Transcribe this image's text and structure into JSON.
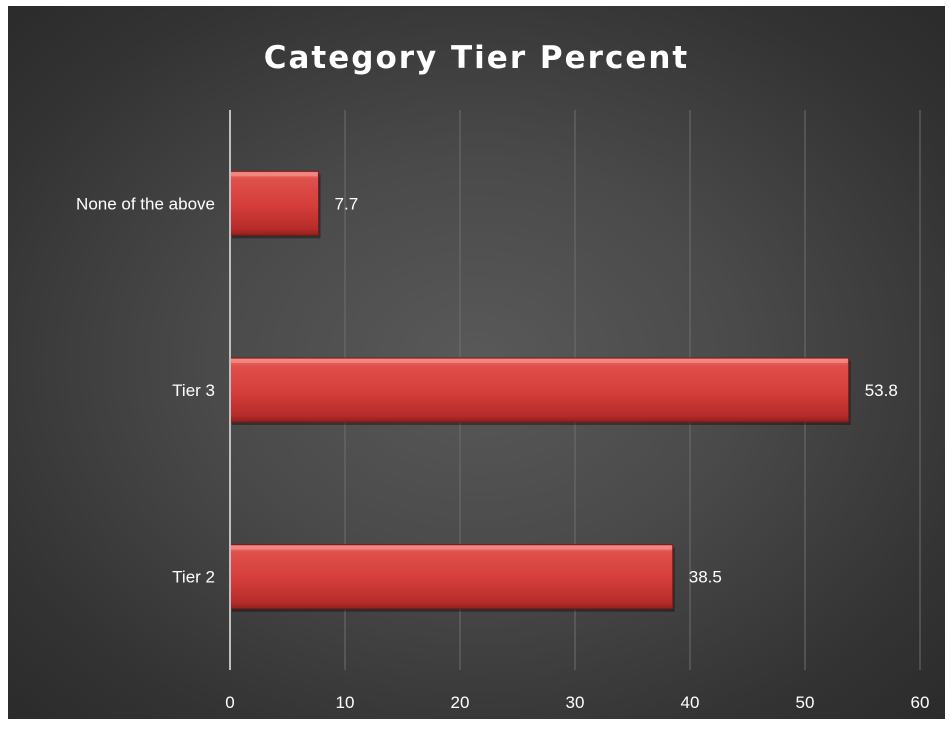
{
  "chart_data": {
    "type": "bar",
    "orientation": "horizontal",
    "title": "Category Tier Percent",
    "categories": [
      "Tier 2",
      "Tier 3",
      "None of the above"
    ],
    "values": [
      38.5,
      53.8,
      7.7
    ],
    "data_labels": [
      "38.5",
      "53.8",
      "7.7"
    ],
    "xlim": [
      0,
      60
    ],
    "x_ticks": [
      0,
      10,
      20,
      30,
      40,
      50,
      60
    ],
    "x_tick_labels": [
      "0",
      "10",
      "20",
      "30",
      "40",
      "50",
      "60"
    ],
    "grid": true,
    "legend": "none",
    "colors": {
      "bar": "#d9413e",
      "background": "#4a4a4a",
      "gridline": "#6e6e6e",
      "axis": "#bfbfbf",
      "text": "#ffffff"
    }
  }
}
